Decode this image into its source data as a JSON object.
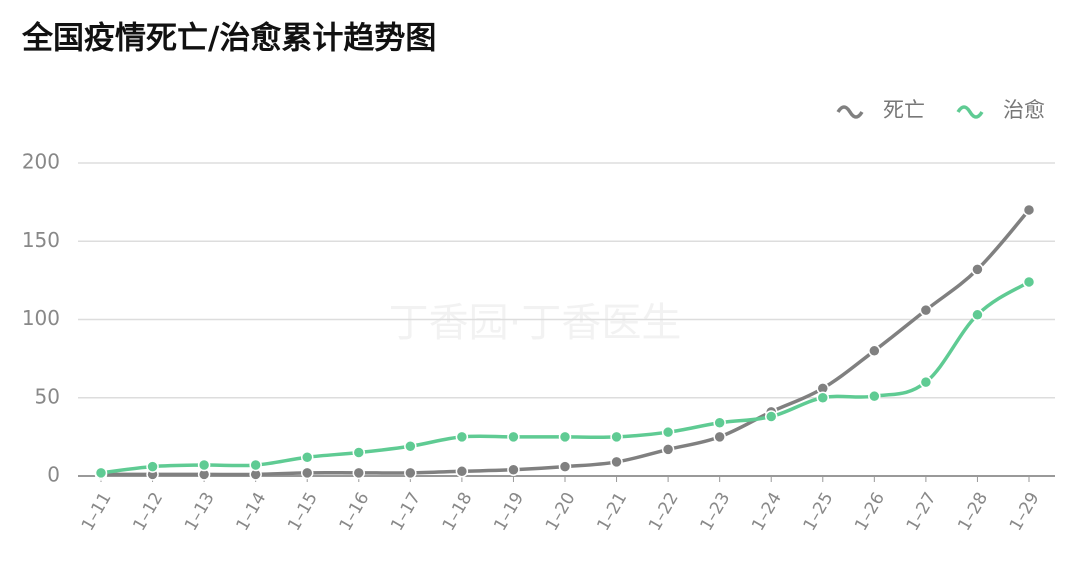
{
  "chart_data": {
    "type": "line",
    "title": "全国疫情死亡/治愈累计趋势图",
    "watermark": "丁香园·丁香医生",
    "categories": [
      "1–11",
      "1–12",
      "1–13",
      "1–14",
      "1–15",
      "1–16",
      "1–17",
      "1–18",
      "1–19",
      "1–20",
      "1–21",
      "1–22",
      "1–23",
      "1–24",
      "1–25",
      "1–26",
      "1–27",
      "1–28",
      "1–29"
    ],
    "series": [
      {
        "name": "死亡",
        "color": "#808080",
        "values": [
          1,
          1,
          1,
          1,
          2,
          2,
          2,
          3,
          4,
          6,
          9,
          17,
          25,
          41,
          56,
          80,
          106,
          132,
          170
        ]
      },
      {
        "name": "治愈",
        "color": "#5fcb93",
        "values": [
          2,
          6,
          7,
          7,
          12,
          15,
          19,
          25,
          25,
          25,
          25,
          28,
          34,
          38,
          50,
          51,
          60,
          103,
          124
        ]
      }
    ],
    "ylim": [
      0,
      200
    ],
    "yticks": [
      0,
      50,
      100,
      150,
      200
    ],
    "grid": true,
    "legend": "top-right"
  }
}
